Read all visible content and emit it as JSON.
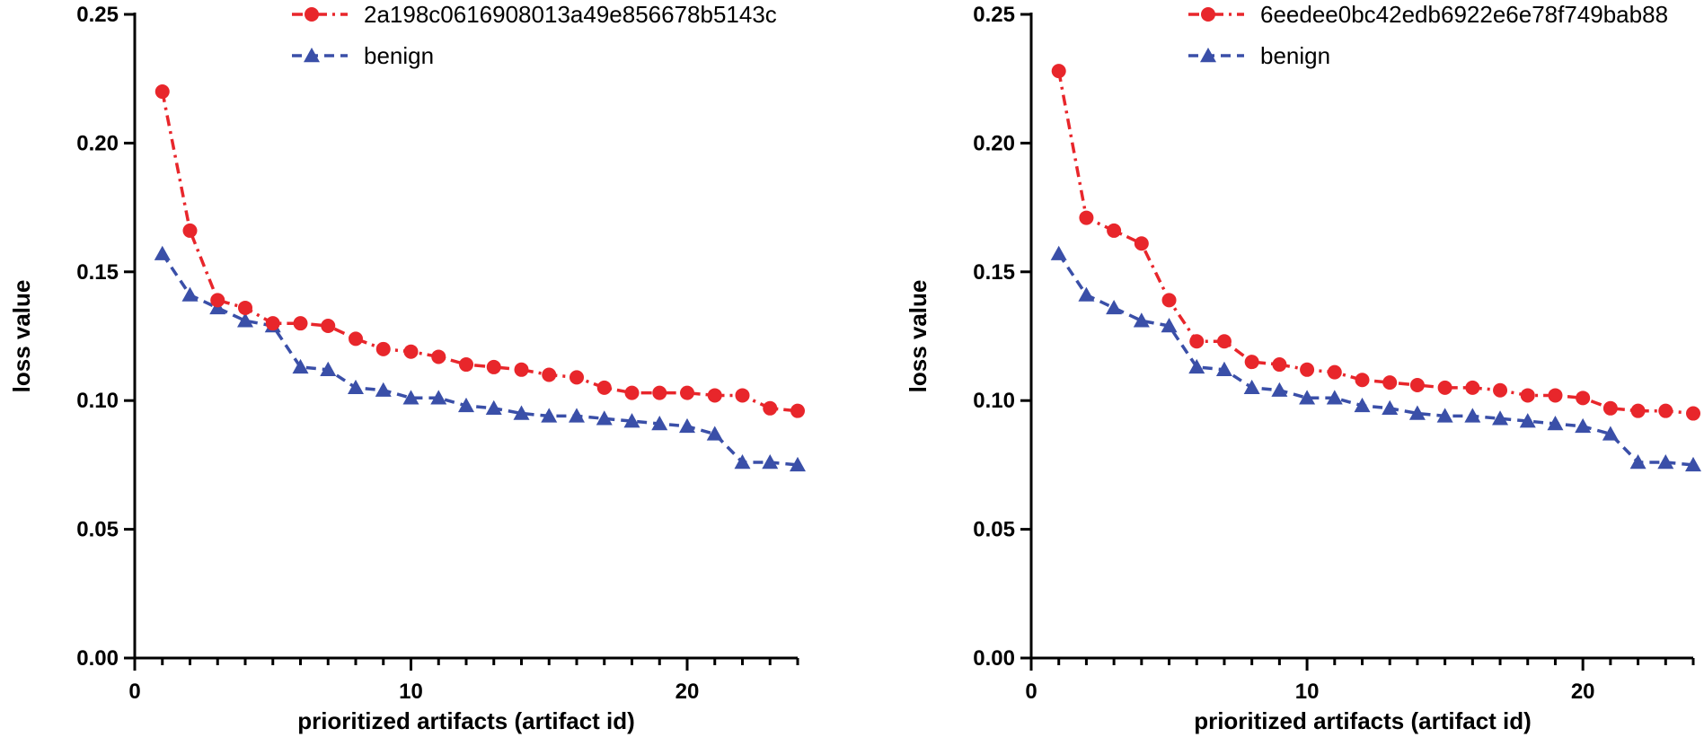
{
  "chart_data": [
    {
      "type": "line",
      "xlabel": "prioritized artifacts (artifact id)",
      "ylabel": "loss value",
      "xlim": [
        0,
        24
      ],
      "ylim": [
        0,
        0.25
      ],
      "x_ticks": [
        0,
        10,
        20
      ],
      "x_tick_labels": [
        "0",
        "10",
        "20"
      ],
      "y_ticks": [
        0,
        0.05,
        0.1,
        0.15,
        0.2,
        0.25
      ],
      "y_tick_labels": [
        "0.00",
        "0.05",
        "0.10",
        "0.15",
        "0.20",
        "0.25"
      ],
      "legend_position": "top",
      "series": [
        {
          "name": "2a198c0616908013a49e856678b5143c",
          "color": "#e8262b",
          "marker": "circle",
          "line_style": "dash-dot",
          "x": [
            1,
            2,
            3,
            4,
            5,
            6,
            7,
            8,
            9,
            10,
            11,
            12,
            13,
            14,
            15,
            16,
            17,
            18,
            19,
            20,
            21,
            22,
            23,
            24
          ],
          "values": [
            0.22,
            0.166,
            0.139,
            0.136,
            0.13,
            0.13,
            0.129,
            0.124,
            0.12,
            0.119,
            0.117,
            0.114,
            0.113,
            0.112,
            0.11,
            0.109,
            0.105,
            0.103,
            0.103,
            0.103,
            0.102,
            0.102,
            0.097,
            0.096
          ]
        },
        {
          "name": "benign",
          "color": "#3a4fa8",
          "marker": "triangle",
          "line_style": "dashed",
          "x": [
            1,
            2,
            3,
            4,
            5,
            6,
            7,
            8,
            9,
            10,
            11,
            12,
            13,
            14,
            15,
            16,
            17,
            18,
            19,
            20,
            21,
            22,
            23,
            24
          ],
          "values": [
            0.157,
            0.141,
            0.136,
            0.131,
            0.129,
            0.113,
            0.112,
            0.105,
            0.104,
            0.101,
            0.101,
            0.098,
            0.097,
            0.095,
            0.094,
            0.094,
            0.093,
            0.092,
            0.091,
            0.09,
            0.087,
            0.076,
            0.076,
            0.075
          ]
        }
      ]
    },
    {
      "type": "line",
      "xlabel": "prioritized artifacts (artifact id)",
      "ylabel": "loss value",
      "xlim": [
        0,
        24
      ],
      "ylim": [
        0,
        0.25
      ],
      "x_ticks": [
        0,
        10,
        20
      ],
      "x_tick_labels": [
        "0",
        "10",
        "20"
      ],
      "y_ticks": [
        0,
        0.05,
        0.1,
        0.15,
        0.2,
        0.25
      ],
      "y_tick_labels": [
        "0.00",
        "0.05",
        "0.10",
        "0.15",
        "0.20",
        "0.25"
      ],
      "legend_position": "top",
      "series": [
        {
          "name": "6eedee0bc42edb6922e6e78f749bab88",
          "color": "#e8262b",
          "marker": "circle",
          "line_style": "dash-dot",
          "x": [
            1,
            2,
            3,
            4,
            5,
            6,
            7,
            8,
            9,
            10,
            11,
            12,
            13,
            14,
            15,
            16,
            17,
            18,
            19,
            20,
            21,
            22,
            23,
            24
          ],
          "values": [
            0.228,
            0.171,
            0.166,
            0.161,
            0.139,
            0.123,
            0.123,
            0.115,
            0.114,
            0.112,
            0.111,
            0.108,
            0.107,
            0.106,
            0.105,
            0.105,
            0.104,
            0.102,
            0.102,
            0.101,
            0.097,
            0.096,
            0.096,
            0.095
          ]
        },
        {
          "name": "benign",
          "color": "#3a4fa8",
          "marker": "triangle",
          "line_style": "dashed",
          "x": [
            1,
            2,
            3,
            4,
            5,
            6,
            7,
            8,
            9,
            10,
            11,
            12,
            13,
            14,
            15,
            16,
            17,
            18,
            19,
            20,
            21,
            22,
            23,
            24
          ],
          "values": [
            0.157,
            0.141,
            0.136,
            0.131,
            0.129,
            0.113,
            0.112,
            0.105,
            0.104,
            0.101,
            0.101,
            0.098,
            0.097,
            0.095,
            0.094,
            0.094,
            0.093,
            0.092,
            0.091,
            0.09,
            0.087,
            0.076,
            0.076,
            0.075
          ]
        }
      ]
    }
  ]
}
